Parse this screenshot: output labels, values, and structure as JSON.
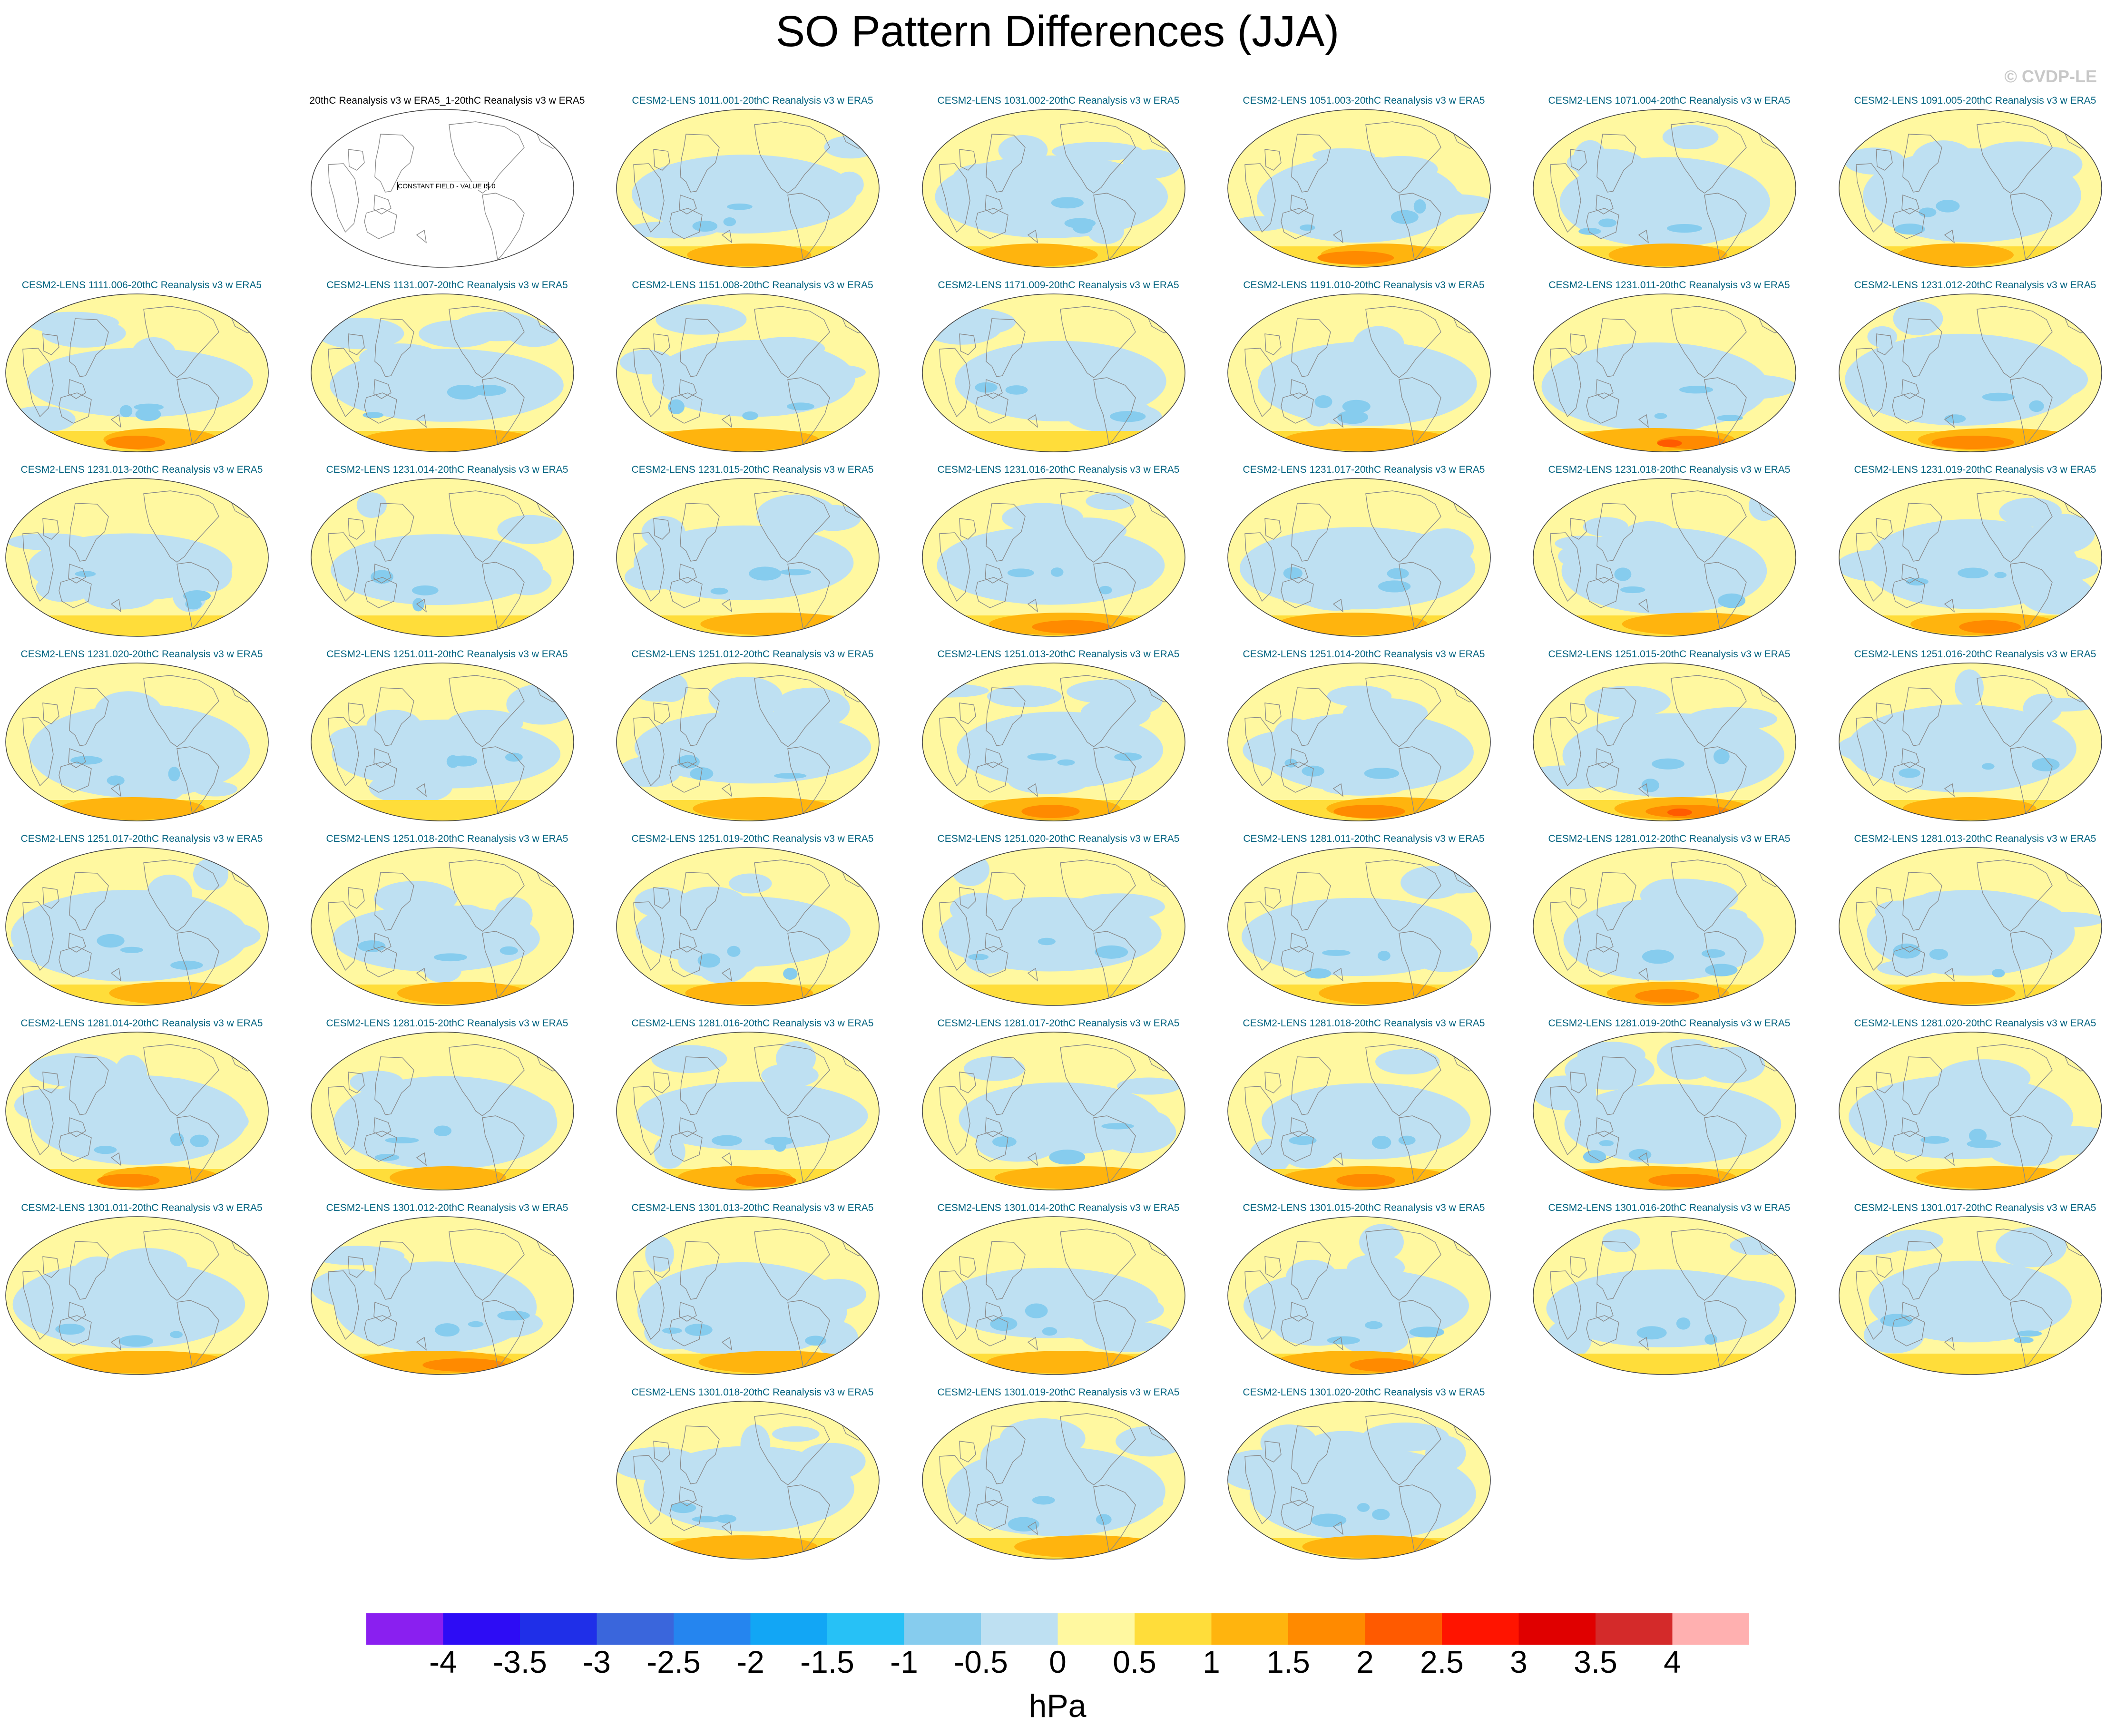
{
  "title": "SO Pattern Differences (JJA)",
  "credit": "© CVDP-LE",
  "colors": {
    "levels": [
      "#8a1ff0",
      "#2d0cf5",
      "#1f2fe8",
      "#3a66dc",
      "#2585ef",
      "#12a6f5",
      "#27c1f6",
      "#86ccee",
      "#bee0f2",
      "#fff8a0",
      "#ffdd3a",
      "#ffb40e",
      "#ff8a00",
      "#ff5a00",
      "#ff1400",
      "#e00000",
      "#d42a2a",
      "#ffb0b0"
    ],
    "coastline": "#8a8a8a",
    "outline": "#444444"
  },
  "chart_data": {
    "type": "map-panel-grid",
    "title": "SO Pattern Differences (JJA)",
    "variable": "Southern Oscillation sea level pressure pattern difference",
    "season": "JJA",
    "projection": "Robinson (Pacific-centered)",
    "colorbar": {
      "units": "hPa",
      "levels": [
        -4,
        -3.5,
        -3,
        -2.5,
        -2,
        -1.5,
        -1,
        -0.5,
        0,
        0.5,
        1,
        1.5,
        2,
        2.5,
        3,
        3.5,
        4
      ],
      "tick_labels": [
        "-4",
        "-3.5",
        "-3",
        "-2.5",
        "-2",
        "-1.5",
        "-1",
        "-0.5",
        "0",
        "0.5",
        "1",
        "1.5",
        "2",
        "2.5",
        "3",
        "3.5",
        "4"
      ]
    },
    "panels": [
      {
        "title": "20thC Reanalysis v3 w ERA5_1-20thC Reanalysis v3 w ERA5",
        "constant_field": true,
        "annotation": "CONSTANT FIELD - VALUE IS 0",
        "so_max": 0
      },
      {
        "title": "CESM2-LENS 1011.001-20thC Reanalysis v3 w ERA5",
        "so_max": 1.5
      },
      {
        "title": "CESM2-LENS 1031.002-20thC Reanalysis v3 w ERA5",
        "so_max": 1.5
      },
      {
        "title": "CESM2-LENS 1051.003-20thC Reanalysis v3 w ERA5",
        "so_max": 2
      },
      {
        "title": "CESM2-LENS 1071.004-20thC Reanalysis v3 w ERA5",
        "so_max": 1.5
      },
      {
        "title": "CESM2-LENS 1091.005-20thC Reanalysis v3 w ERA5",
        "so_max": 1.5
      },
      {
        "title": "CESM2-LENS 1111.006-20thC Reanalysis v3 w ERA5",
        "so_max": 2
      },
      {
        "title": "CESM2-LENS 1131.007-20thC Reanalysis v3 w ERA5",
        "so_max": 1.5
      },
      {
        "title": "CESM2-LENS 1151.008-20thC Reanalysis v3 w ERA5",
        "so_max": 1.5
      },
      {
        "title": "CESM2-LENS 1171.009-20thC Reanalysis v3 w ERA5",
        "so_max": 1
      },
      {
        "title": "CESM2-LENS 1191.010-20thC Reanalysis v3 w ERA5",
        "so_max": 1.5
      },
      {
        "title": "CESM2-LENS 1231.011-20thC Reanalysis v3 w ERA5",
        "so_max": 2.5
      },
      {
        "title": "CESM2-LENS 1231.012-20thC Reanalysis v3 w ERA5",
        "so_max": 2
      },
      {
        "title": "CESM2-LENS 1231.013-20thC Reanalysis v3 w ERA5",
        "so_max": 1
      },
      {
        "title": "CESM2-LENS 1231.014-20thC Reanalysis v3 w ERA5",
        "so_max": 1
      },
      {
        "title": "CESM2-LENS 1231.015-20thC Reanalysis v3 w ERA5",
        "so_max": 1.5
      },
      {
        "title": "CESM2-LENS 1231.016-20thC Reanalysis v3 w ERA5",
        "so_max": 2
      },
      {
        "title": "CESM2-LENS 1231.017-20thC Reanalysis v3 w ERA5",
        "so_max": 1.5
      },
      {
        "title": "CESM2-LENS 1231.018-20thC Reanalysis v3 w ERA5",
        "so_max": 1.5
      },
      {
        "title": "CESM2-LENS 1231.019-20thC Reanalysis v3 w ERA5",
        "so_max": 2
      },
      {
        "title": "CESM2-LENS 1231.020-20thC Reanalysis v3 w ERA5",
        "so_max": 1.5
      },
      {
        "title": "CESM2-LENS 1251.011-20thC Reanalysis v3 w ERA5",
        "so_max": 1
      },
      {
        "title": "CESM2-LENS 1251.012-20thC Reanalysis v3 w ERA5",
        "so_max": 1.5
      },
      {
        "title": "CESM2-LENS 1251.013-20thC Reanalysis v3 w ERA5",
        "so_max": 2
      },
      {
        "title": "CESM2-LENS 1251.014-20thC Reanalysis v3 w ERA5",
        "so_max": 2
      },
      {
        "title": "CESM2-LENS 1251.015-20thC Reanalysis v3 w ERA5",
        "so_max": 2.5
      },
      {
        "title": "CESM2-LENS 1251.016-20thC Reanalysis v3 w ERA5",
        "so_max": 1.5
      },
      {
        "title": "CESM2-LENS 1251.017-20thC Reanalysis v3 w ERA5",
        "so_max": 1.5
      },
      {
        "title": "CESM2-LENS 1251.018-20thC Reanalysis v3 w ERA5",
        "so_max": 1.5
      },
      {
        "title": "CESM2-LENS 1251.019-20thC Reanalysis v3 w ERA5",
        "so_max": 1.5
      },
      {
        "title": "CESM2-LENS 1251.020-20thC Reanalysis v3 w ERA5",
        "so_max": 1
      },
      {
        "title": "CESM2-LENS 1281.011-20thC Reanalysis v3 w ERA5",
        "so_max": 1.5
      },
      {
        "title": "CESM2-LENS 1281.012-20thC Reanalysis v3 w ERA5",
        "so_max": 2
      },
      {
        "title": "CESM2-LENS 1281.013-20thC Reanalysis v3 w ERA5",
        "so_max": 1.5
      },
      {
        "title": "CESM2-LENS 1281.014-20thC Reanalysis v3 w ERA5",
        "so_max": 2
      },
      {
        "title": "CESM2-LENS 1281.015-20thC Reanalysis v3 w ERA5",
        "so_max": 1.5
      },
      {
        "title": "CESM2-LENS 1281.016-20thC Reanalysis v3 w ERA5",
        "so_max": 2
      },
      {
        "title": "CESM2-LENS 1281.017-20thC Reanalysis v3 w ERA5",
        "so_max": 1.5
      },
      {
        "title": "CESM2-LENS 1281.018-20thC Reanalysis v3 w ERA5",
        "so_max": 2
      },
      {
        "title": "CESM2-LENS 1281.019-20thC Reanalysis v3 w ERA5",
        "so_max": 2
      },
      {
        "title": "CESM2-LENS 1281.020-20thC Reanalysis v3 w ERA5",
        "so_max": 1.5
      },
      {
        "title": "CESM2-LENS 1301.011-20thC Reanalysis v3 w ERA5",
        "so_max": 1.5
      },
      {
        "title": "CESM2-LENS 1301.012-20thC Reanalysis v3 w ERA5",
        "so_max": 2
      },
      {
        "title": "CESM2-LENS 1301.013-20thC Reanalysis v3 w ERA5",
        "so_max": 1.5
      },
      {
        "title": "CESM2-LENS 1301.014-20thC Reanalysis v3 w ERA5",
        "so_max": 1.5
      },
      {
        "title": "CESM2-LENS 1301.015-20thC Reanalysis v3 w ERA5",
        "so_max": 2
      },
      {
        "title": "CESM2-LENS 1301.016-20thC Reanalysis v3 w ERA5",
        "so_max": 1
      },
      {
        "title": "CESM2-LENS 1301.017-20thC Reanalysis v3 w ERA5",
        "so_max": 1
      },
      {
        "title": "CESM2-LENS 1301.018-20thC Reanalysis v3 w ERA5",
        "so_max": 1.5
      },
      {
        "title": "CESM2-LENS 1301.019-20thC Reanalysis v3 w ERA5",
        "so_max": 1.5
      },
      {
        "title": "CESM2-LENS 1301.020-20thC Reanalysis v3 w ERA5",
        "so_max": 1.5
      }
    ]
  }
}
